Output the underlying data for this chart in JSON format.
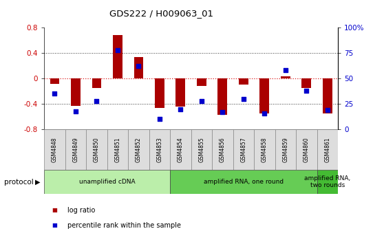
{
  "title": "GDS222 / H009063_01",
  "samples": [
    "GSM4848",
    "GSM4849",
    "GSM4850",
    "GSM4851",
    "GSM4852",
    "GSM4853",
    "GSM4854",
    "GSM4855",
    "GSM4856",
    "GSM4857",
    "GSM4858",
    "GSM4859",
    "GSM4860",
    "GSM4861"
  ],
  "log_ratio": [
    -0.08,
    -0.43,
    -0.15,
    0.68,
    0.34,
    -0.46,
    -0.44,
    -0.12,
    -0.57,
    -0.1,
    -0.55,
    0.04,
    -0.15,
    -0.55
  ],
  "percentile": [
    35,
    18,
    28,
    78,
    62,
    10,
    20,
    28,
    17,
    30,
    16,
    58,
    38,
    19
  ],
  "ylim_left": [
    -0.8,
    0.8
  ],
  "ylim_right": [
    0,
    100
  ],
  "yticks_left": [
    -0.8,
    -0.4,
    0.0,
    0.4,
    0.8
  ],
  "ytick_labels_left": [
    "-0.8",
    "-0.4",
    "0",
    "0.4",
    "0.8"
  ],
  "yticks_right": [
    0,
    25,
    50,
    75,
    100
  ],
  "ytick_labels_right": [
    "0",
    "25",
    "50",
    "75",
    "100%"
  ],
  "dotted_lines_black": [
    -0.4,
    0.4
  ],
  "zero_line_y": 0.0,
  "bar_color": "#AA0000",
  "dot_color": "#0000CC",
  "zero_line_color": "#DD2222",
  "dotted_color": "#333333",
  "protocol_groups": [
    {
      "label": "unamplified cDNA",
      "start": 0,
      "end": 5,
      "color": "#BBEEAA"
    },
    {
      "label": "amplified RNA, one round",
      "start": 6,
      "end": 12,
      "color": "#66CC55"
    },
    {
      "label": "amplified RNA,\ntwo rounds",
      "start": 13,
      "end": 13,
      "color": "#44BB33"
    }
  ],
  "protocol_label": "protocol",
  "legend_items": [
    {
      "label": "log ratio",
      "color": "#AA0000"
    },
    {
      "label": "percentile rank within the sample",
      "color": "#0000CC"
    }
  ],
  "background_color": "#FFFFFF",
  "sample_box_color": "#DDDDDD",
  "tick_label_color_left": "#CC0000",
  "tick_label_color_right": "#0000CC",
  "bar_width": 0.45
}
